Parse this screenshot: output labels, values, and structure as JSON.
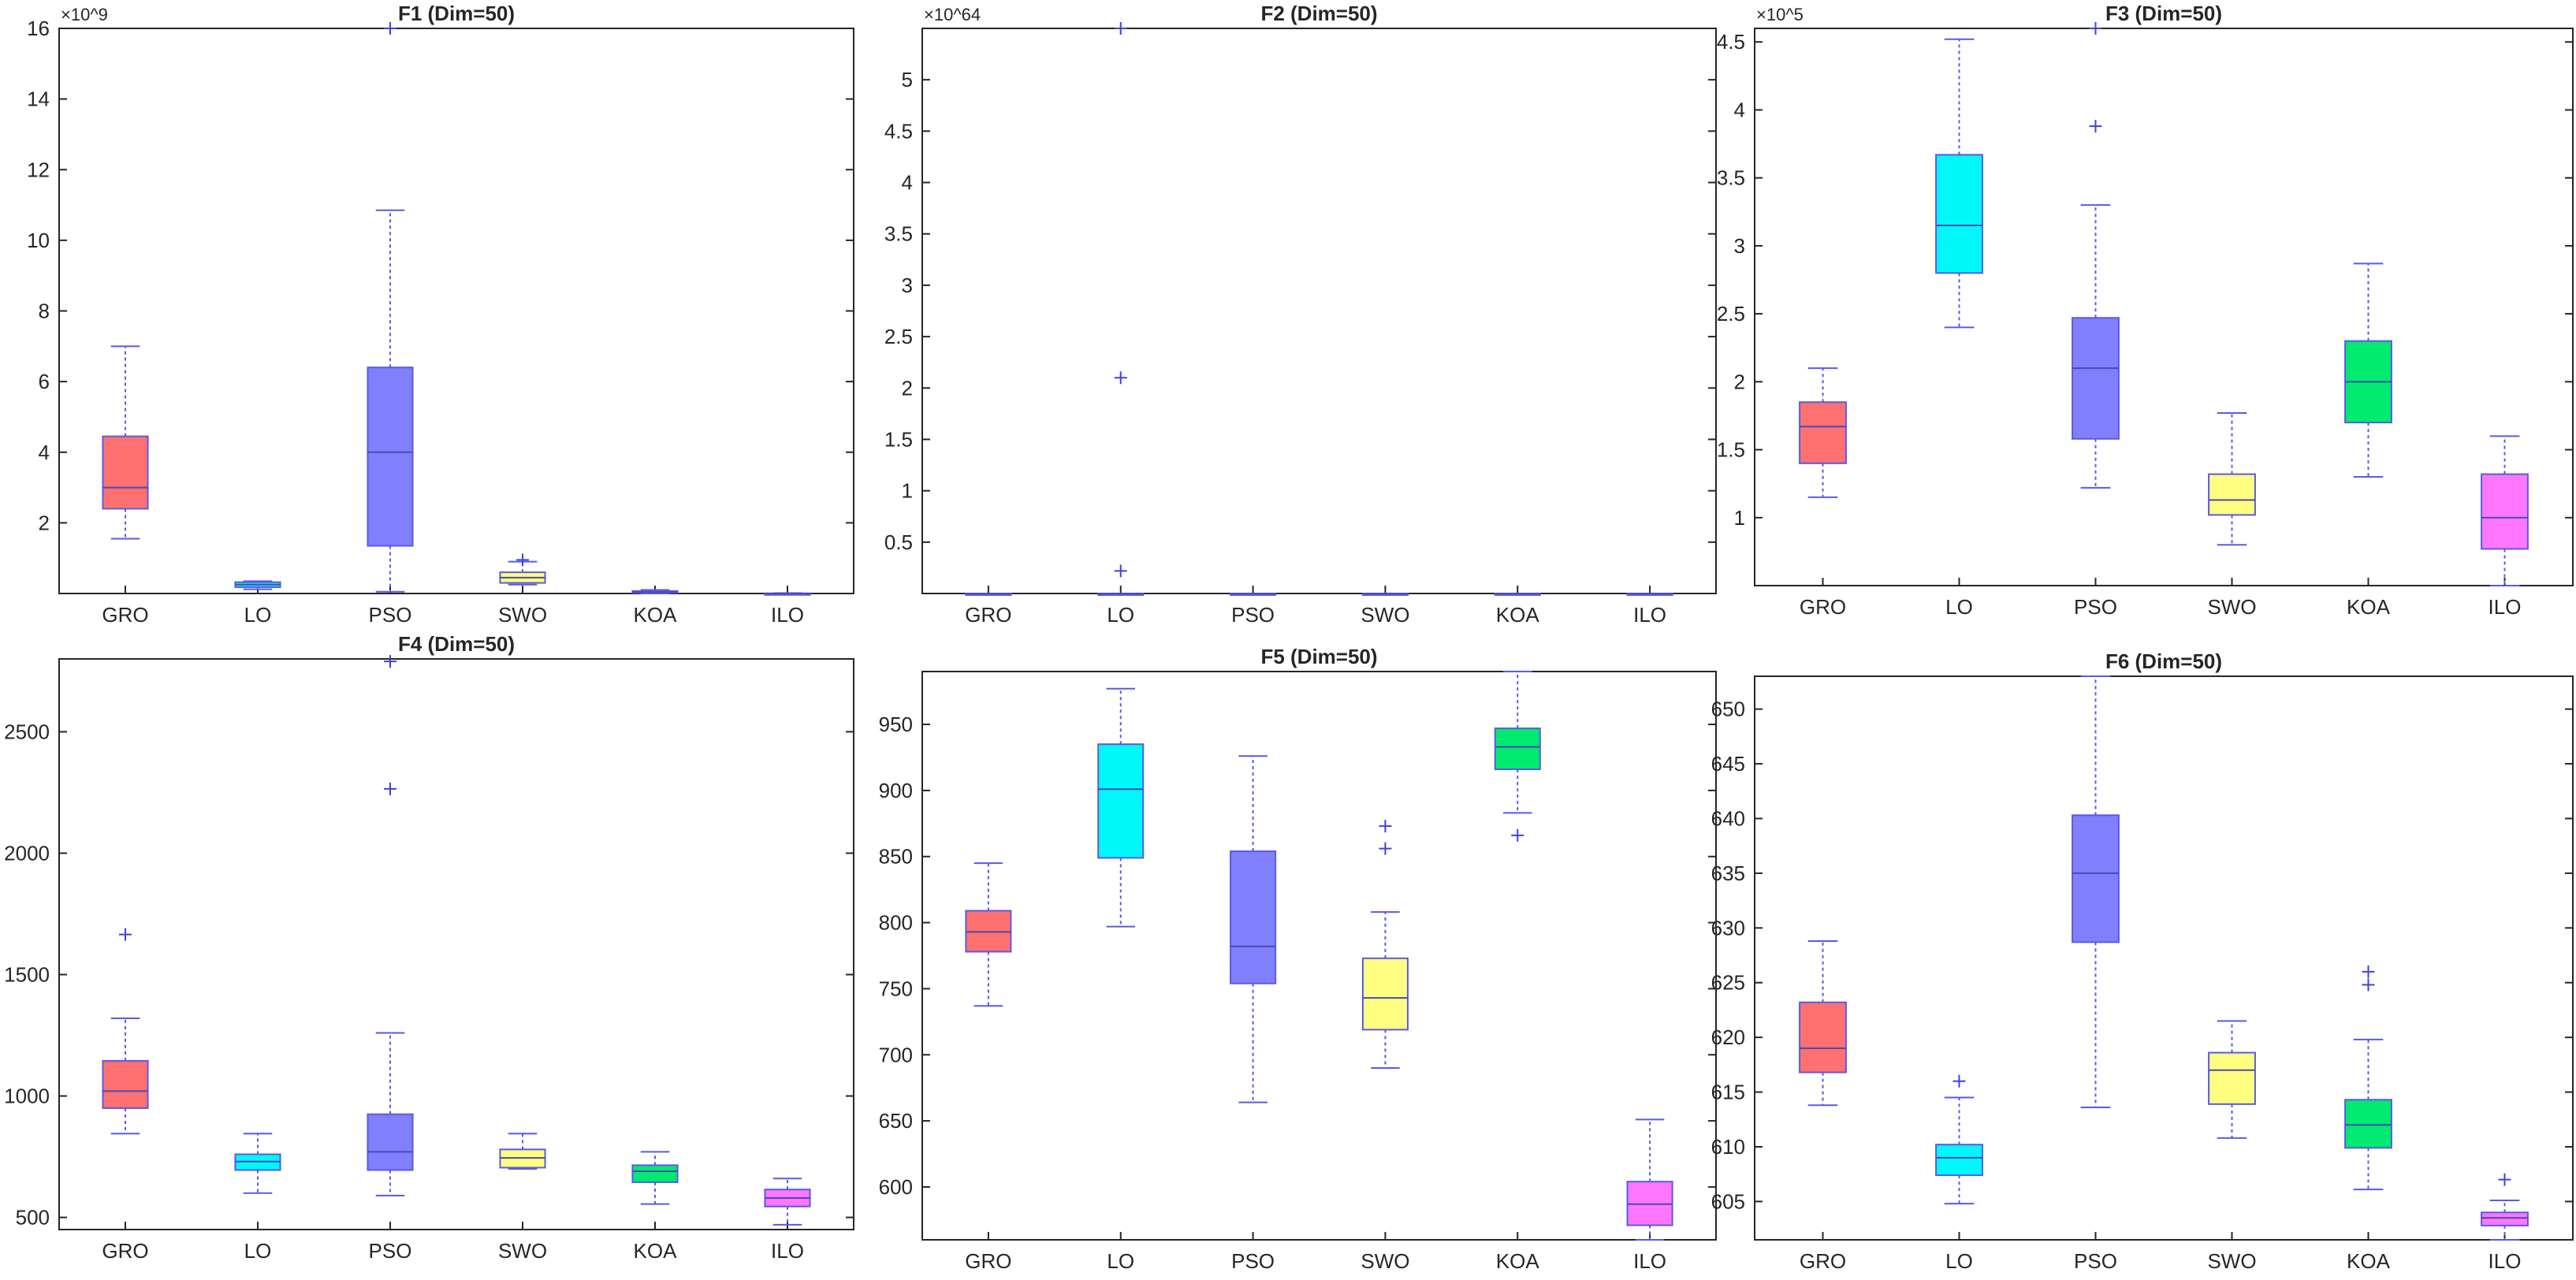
{
  "chart_data": [
    {
      "type": "boxplot",
      "title": "F1 (Dim=50)",
      "scale_label": "×10^9",
      "ylim": [
        0,
        16
      ],
      "yticks": [
        "2",
        "4",
        "6",
        "8",
        "10",
        "12",
        "14",
        "16"
      ],
      "yticks_values": [
        2,
        4,
        6,
        8,
        10,
        12,
        14,
        16
      ],
      "categories": [
        "GRO",
        "LO",
        "PSO",
        "SWO",
        "KOA",
        "ILO"
      ],
      "boxes": [
        {
          "q1": 2.4,
          "median": 3.0,
          "q3": 4.45,
          "whisker_low": 1.55,
          "whisker_high": 7.0,
          "outliers": []
        },
        {
          "q1": 0.18,
          "median": 0.25,
          "q3": 0.32,
          "whisker_low": 0.12,
          "whisker_high": 0.35,
          "outliers": []
        },
        {
          "q1": 1.35,
          "median": 4.0,
          "q3": 6.4,
          "whisker_low": 0.05,
          "whisker_high": 10.85,
          "outliers": [
            16.0
          ]
        },
        {
          "q1": 0.3,
          "median": 0.45,
          "q3": 0.6,
          "whisker_low": 0.25,
          "whisker_high": 0.9,
          "outliers": [
            0.95
          ]
        },
        {
          "q1": 0.02,
          "median": 0.04,
          "q3": 0.07,
          "whisker_low": 0.0,
          "whisker_high": 0.1,
          "outliers": []
        },
        {
          "q1": 0.0,
          "median": 0.0,
          "q3": 0.005,
          "whisker_low": 0.0,
          "whisker_high": 0.01,
          "outliers": []
        }
      ]
    },
    {
      "type": "boxplot",
      "title": "F2 (Dim=50)",
      "scale_label": "×10^64",
      "ylim": [
        0,
        5.5
      ],
      "yticks": [
        "0.5",
        "1",
        "1.5",
        "2",
        "2.5",
        "3",
        "3.5",
        "4",
        "4.5",
        "5"
      ],
      "yticks_values": [
        0.5,
        1,
        1.5,
        2,
        2.5,
        3,
        3.5,
        4,
        4.5,
        5
      ],
      "categories": [
        "GRO",
        "LO",
        "PSO",
        "SWO",
        "KOA",
        "ILO"
      ],
      "boxes": [
        {
          "q1": 0,
          "median": 0,
          "q3": 0,
          "whisker_low": 0,
          "whisker_high": 0,
          "outliers": []
        },
        {
          "q1": 0,
          "median": 0,
          "q3": 0,
          "whisker_low": 0,
          "whisker_high": 0,
          "outliers": [
            5.5,
            2.1,
            0.22
          ]
        },
        {
          "q1": 0,
          "median": 0,
          "q3": 0,
          "whisker_low": 0,
          "whisker_high": 0,
          "outliers": []
        },
        {
          "q1": 0,
          "median": 0,
          "q3": 0,
          "whisker_low": 0,
          "whisker_high": 0,
          "outliers": []
        },
        {
          "q1": 0,
          "median": 0,
          "q3": 0,
          "whisker_low": 0,
          "whisker_high": 0,
          "outliers": []
        },
        {
          "q1": 0,
          "median": 0,
          "q3": 0,
          "whisker_low": 0,
          "whisker_high": 0,
          "outliers": []
        }
      ]
    },
    {
      "type": "boxplot",
      "title": "F3 (Dim=50)",
      "scale_label": "×10^5",
      "ylim": [
        0.5,
        4.6
      ],
      "yticks": [
        "1",
        "1.5",
        "2",
        "2.5",
        "3",
        "3.5",
        "4",
        "4.5"
      ],
      "yticks_values": [
        1,
        1.5,
        2,
        2.5,
        3,
        3.5,
        4,
        4.5
      ],
      "categories": [
        "GRO",
        "LO",
        "PSO",
        "SWO",
        "KOA",
        "ILO"
      ],
      "boxes": [
        {
          "q1": 1.4,
          "median": 1.67,
          "q3": 1.85,
          "whisker_low": 1.15,
          "whisker_high": 2.1,
          "outliers": []
        },
        {
          "q1": 2.8,
          "median": 3.15,
          "q3": 3.67,
          "whisker_low": 2.4,
          "whisker_high": 4.52,
          "outliers": []
        },
        {
          "q1": 1.58,
          "median": 2.1,
          "q3": 2.47,
          "whisker_low": 1.22,
          "whisker_high": 3.3,
          "outliers": [
            3.88,
            4.6
          ]
        },
        {
          "q1": 1.02,
          "median": 1.13,
          "q3": 1.32,
          "whisker_low": 0.8,
          "whisker_high": 1.77,
          "outliers": []
        },
        {
          "q1": 1.7,
          "median": 2.0,
          "q3": 2.3,
          "whisker_low": 1.3,
          "whisker_high": 2.87,
          "outliers": []
        },
        {
          "q1": 0.77,
          "median": 1.0,
          "q3": 1.32,
          "whisker_low": 0.5,
          "whisker_high": 1.6,
          "outliers": []
        }
      ]
    },
    {
      "type": "boxplot",
      "title": "F4 (Dim=50)",
      "scale_label": "",
      "ylim": [
        450,
        2800
      ],
      "yticks": [
        "500",
        "1000",
        "1500",
        "2000",
        "2500"
      ],
      "yticks_values": [
        500,
        1000,
        1500,
        2000,
        2500
      ],
      "categories": [
        "GRO",
        "LO",
        "PSO",
        "SWO",
        "KOA",
        "ILO"
      ],
      "boxes": [
        {
          "q1": 950,
          "median": 1020,
          "q3": 1145,
          "whisker_low": 845,
          "whisker_high": 1320,
          "outliers": [
            1665
          ]
        },
        {
          "q1": 695,
          "median": 730,
          "q3": 760,
          "whisker_low": 600,
          "whisker_high": 845,
          "outliers": []
        },
        {
          "q1": 695,
          "median": 770,
          "q3": 925,
          "whisker_low": 590,
          "whisker_high": 1260,
          "outliers": [
            2265,
            2790
          ]
        },
        {
          "q1": 705,
          "median": 745,
          "q3": 780,
          "whisker_low": 700,
          "whisker_high": 845,
          "outliers": []
        },
        {
          "q1": 645,
          "median": 690,
          "q3": 715,
          "whisker_low": 555,
          "whisker_high": 770,
          "outliers": []
        },
        {
          "q1": 545,
          "median": 580,
          "q3": 615,
          "whisker_low": 470,
          "whisker_high": 660,
          "outliers": []
        }
      ]
    },
    {
      "type": "boxplot",
      "title": "F5 (Dim=50)",
      "scale_label": "",
      "ylim": [
        560,
        990
      ],
      "yticks": [
        "600",
        "650",
        "700",
        "750",
        "800",
        "850",
        "900",
        "950"
      ],
      "yticks_values": [
        600,
        650,
        700,
        750,
        800,
        850,
        900,
        950
      ],
      "categories": [
        "GRO",
        "LO",
        "PSO",
        "SWO",
        "KOA",
        "ILO"
      ],
      "boxes": [
        {
          "q1": 778,
          "median": 793,
          "q3": 809,
          "whisker_low": 737,
          "whisker_high": 845,
          "outliers": []
        },
        {
          "q1": 849,
          "median": 901,
          "q3": 935,
          "whisker_low": 797,
          "whisker_high": 977,
          "outliers": []
        },
        {
          "q1": 754,
          "median": 782,
          "q3": 854,
          "whisker_low": 664,
          "whisker_high": 926,
          "outliers": []
        },
        {
          "q1": 719,
          "median": 743,
          "q3": 773,
          "whisker_low": 690,
          "whisker_high": 808,
          "outliers": [
            856,
            873
          ]
        },
        {
          "q1": 916,
          "median": 933,
          "q3": 947,
          "whisker_low": 883,
          "whisker_high": 990,
          "outliers": [
            866
          ]
        },
        {
          "q1": 571,
          "median": 587,
          "q3": 604,
          "whisker_low": 560,
          "whisker_high": 651,
          "outliers": []
        }
      ]
    },
    {
      "type": "boxplot",
      "title": "F6 (Dim=50)",
      "scale_label": "",
      "ylim": [
        601.5,
        653
      ],
      "yticks": [
        "605",
        "610",
        "615",
        "620",
        "625",
        "630",
        "635",
        "640",
        "645",
        "650"
      ],
      "yticks_values": [
        605,
        610,
        615,
        620,
        625,
        630,
        635,
        640,
        645,
        650
      ],
      "categories": [
        "GRO",
        "LO",
        "PSO",
        "SWO",
        "KOA",
        "ILO"
      ],
      "boxes": [
        {
          "q1": 616.8,
          "median": 619.0,
          "q3": 623.2,
          "whisker_low": 613.8,
          "whisker_high": 628.8,
          "outliers": []
        },
        {
          "q1": 607.4,
          "median": 609.0,
          "q3": 610.2,
          "whisker_low": 604.8,
          "whisker_high": 614.5,
          "outliers": [
            616.0
          ]
        },
        {
          "q1": 628.7,
          "median": 635.0,
          "q3": 640.3,
          "whisker_low": 613.6,
          "whisker_high": 653.0,
          "outliers": []
        },
        {
          "q1": 613.9,
          "median": 617.0,
          "q3": 618.6,
          "whisker_low": 610.8,
          "whisker_high": 621.5,
          "outliers": []
        },
        {
          "q1": 609.9,
          "median": 612.0,
          "q3": 614.3,
          "whisker_low": 606.1,
          "whisker_high": 619.8,
          "outliers": [
            624.8,
            626.0
          ]
        },
        {
          "q1": 602.8,
          "median": 603.5,
          "q3": 604.0,
          "whisker_low": 601.5,
          "whisker_high": 605.1,
          "outliers": [
            607.0
          ]
        }
      ]
    }
  ],
  "colors": {
    "GRO": "#ff7070",
    "LO": "#00f8f8",
    "PSO": "#8080ff",
    "SWO": "#fffe80",
    "KOA": "#00ea6f",
    "ILO": "#ff77ff",
    "whisker": "#5a5ae6",
    "median": "#4a4ab0",
    "axis": "#262626"
  }
}
